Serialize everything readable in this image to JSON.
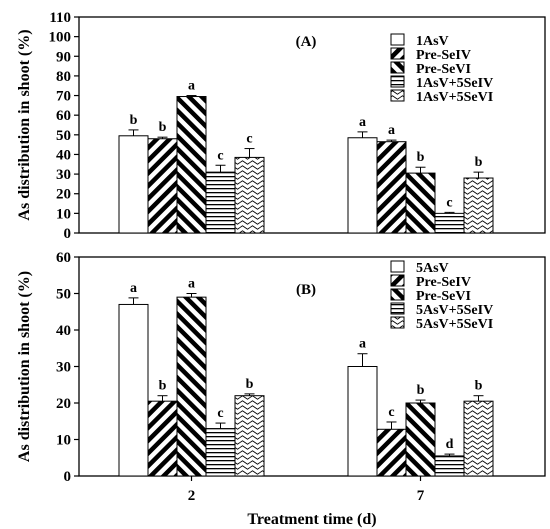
{
  "chart_data": [
    {
      "type": "bar",
      "panel_label": "(A)",
      "categories": [
        "2",
        "7"
      ],
      "ylabel": "As distribution in shoot (%)",
      "ylim": [
        0,
        110
      ],
      "yticks": [
        0,
        10,
        20,
        30,
        40,
        50,
        60,
        70,
        80,
        90,
        100,
        110
      ],
      "legend_position": "top-right",
      "series": [
        {
          "name": "1AsV",
          "pattern": "white",
          "values": [
            49.5,
            48.5
          ],
          "errors": [
            3.0,
            3.0
          ],
          "sig": [
            "b",
            "a"
          ]
        },
        {
          "name": "Pre-SeIV",
          "pattern": "diag-down",
          "values": [
            48.0,
            46.5
          ],
          "errors": [
            0.8,
            0.8
          ],
          "sig": [
            "b",
            "a"
          ]
        },
        {
          "name": "Pre-SeVI",
          "pattern": "diag-up",
          "values": [
            69.5,
            30.5
          ],
          "errors": [
            0.5,
            3.0
          ],
          "sig": [
            "a",
            "b"
          ]
        },
        {
          "name": "1AsV+5SeIV",
          "pattern": "horizontal",
          "values": [
            31.0,
            10.0
          ],
          "errors": [
            3.5,
            0.5
          ],
          "sig": [
            "c",
            "c"
          ]
        },
        {
          "name": "1AsV+5SeVI",
          "pattern": "wave",
          "values": [
            38.5,
            28.0
          ],
          "errors": [
            4.5,
            3.0
          ],
          "sig": [
            "c",
            "b"
          ]
        }
      ]
    },
    {
      "type": "bar",
      "panel_label": "(B)",
      "categories": [
        "2",
        "7"
      ],
      "xlabel": "Treatment time (d)",
      "ylabel": "As distribution in shoot (%)",
      "ylim": [
        0,
        60
      ],
      "yticks": [
        0,
        10,
        20,
        30,
        40,
        50,
        60
      ],
      "legend_position": "top-right",
      "series": [
        {
          "name": "5AsV",
          "pattern": "white",
          "values": [
            47.0,
            30.0
          ],
          "errors": [
            1.8,
            3.5
          ],
          "sig": [
            "a",
            "a"
          ]
        },
        {
          "name": "Pre-SeIV",
          "pattern": "diag-down",
          "values": [
            20.5,
            12.8
          ],
          "errors": [
            1.5,
            2.0
          ],
          "sig": [
            "b",
            "c"
          ]
        },
        {
          "name": "Pre-SeVI",
          "pattern": "diag-up",
          "values": [
            49.0,
            20.0
          ],
          "errors": [
            1.0,
            0.8
          ],
          "sig": [
            "a",
            "b"
          ]
        },
        {
          "name": "5AsV+5SeIV",
          "pattern": "horizontal",
          "values": [
            13.0,
            5.5
          ],
          "errors": [
            1.5,
            0.5
          ],
          "sig": [
            "c",
            "d"
          ]
        },
        {
          "name": "5AsV+5SeVI",
          "pattern": "wave",
          "values": [
            22.0,
            20.5
          ],
          "errors": [
            0.5,
            1.5
          ],
          "sig": [
            "b",
            "b"
          ]
        }
      ]
    }
  ]
}
